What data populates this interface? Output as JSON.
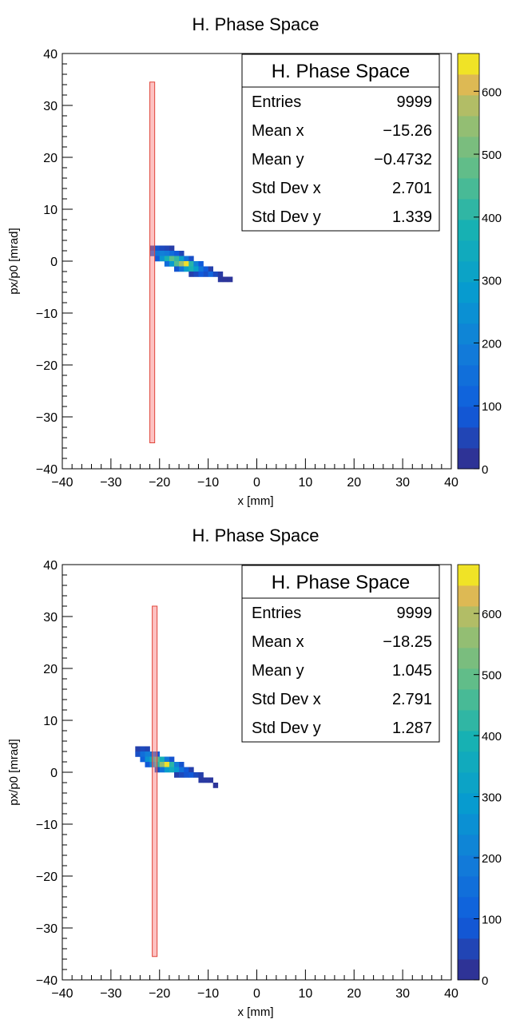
{
  "chart_data": [
    {
      "type": "heatmap",
      "title": "H. Phase Space",
      "xlabel": "x [mm]",
      "ylabel": "px/p0 [mrad]",
      "xlim": [
        -40,
        40
      ],
      "ylim": [
        -40,
        40
      ],
      "x_ticks": [
        "−40",
        "−30",
        "−20",
        "−10",
        "0",
        "10",
        "20",
        "30",
        "40"
      ],
      "y_ticks": [
        "−40",
        "−30",
        "−20",
        "−10",
        "0",
        "10",
        "20",
        "30",
        "40"
      ],
      "z_range": [
        0,
        660
      ],
      "palette_ticks": [
        "0",
        "100",
        "200",
        "300",
        "400",
        "500",
        "600"
      ],
      "aperture": {
        "x_min": -22,
        "x_max": -21,
        "y_min": -35,
        "y_max": 34.5
      },
      "stats": {
        "title": "H. Phase Space",
        "rows": [
          {
            "label": "Entries",
            "value": "9999"
          },
          {
            "label": "Mean x",
            "value": "−15.26"
          },
          {
            "label": "Mean y",
            "value": "−0.4732"
          },
          {
            "label": "Std Dev x",
            "value": "2.701"
          },
          {
            "label": "Std Dev y",
            "value": "1.339"
          }
        ]
      },
      "cells": [
        {
          "x": -22,
          "y": 2,
          "z": 40
        },
        {
          "x": -21,
          "y": 2,
          "z": 80
        },
        {
          "x": -20,
          "y": 2,
          "z": 60
        },
        {
          "x": -19,
          "y": 2,
          "z": 50
        },
        {
          "x": -18,
          "y": 2,
          "z": 35
        },
        {
          "x": -22,
          "y": 1,
          "z": 110
        },
        {
          "x": -21,
          "y": 1,
          "z": 170
        },
        {
          "x": -20,
          "y": 1,
          "z": 200
        },
        {
          "x": -19,
          "y": 1,
          "z": 180
        },
        {
          "x": -18,
          "y": 1,
          "z": 140
        },
        {
          "x": -17,
          "y": 1,
          "z": 90
        },
        {
          "x": -16,
          "y": 1,
          "z": 50
        },
        {
          "x": -21,
          "y": 0,
          "z": 90
        },
        {
          "x": -20,
          "y": 0,
          "z": 260
        },
        {
          "x": -19,
          "y": 0,
          "z": 380
        },
        {
          "x": -18,
          "y": 0,
          "z": 470
        },
        {
          "x": -17,
          "y": 0,
          "z": 420
        },
        {
          "x": -16,
          "y": 0,
          "z": 300
        },
        {
          "x": -15,
          "y": 0,
          "z": 160
        },
        {
          "x": -14,
          "y": 0,
          "z": 70
        },
        {
          "x": -19,
          "y": -1,
          "z": 140
        },
        {
          "x": -18,
          "y": -1,
          "z": 280
        },
        {
          "x": -17,
          "y": -1,
          "z": 460
        },
        {
          "x": -16,
          "y": -1,
          "z": 560
        },
        {
          "x": -15,
          "y": -1,
          "z": 640
        },
        {
          "x": -14,
          "y": -1,
          "z": 400
        },
        {
          "x": -13,
          "y": -1,
          "z": 210
        },
        {
          "x": -12,
          "y": -1,
          "z": 90
        },
        {
          "x": -17,
          "y": -2,
          "z": 80
        },
        {
          "x": -16,
          "y": -2,
          "z": 160
        },
        {
          "x": -15,
          "y": -2,
          "z": 300
        },
        {
          "x": -14,
          "y": -2,
          "z": 380
        },
        {
          "x": -13,
          "y": -2,
          "z": 300
        },
        {
          "x": -12,
          "y": -2,
          "z": 170
        },
        {
          "x": -11,
          "y": -2,
          "z": 90
        },
        {
          "x": -10,
          "y": -2,
          "z": 40
        },
        {
          "x": -14,
          "y": -3,
          "z": 40
        },
        {
          "x": -13,
          "y": -3,
          "z": 60
        },
        {
          "x": -12,
          "y": -3,
          "z": 90
        },
        {
          "x": -11,
          "y": -3,
          "z": 70
        },
        {
          "x": -10,
          "y": -3,
          "z": 120
        },
        {
          "x": -9,
          "y": -3,
          "z": 60
        },
        {
          "x": -8,
          "y": -3,
          "z": 30
        },
        {
          "x": -8,
          "y": -4,
          "z": 25
        },
        {
          "x": -7,
          "y": -4,
          "z": 20
        },
        {
          "x": -6,
          "y": -4,
          "z": 20
        }
      ]
    },
    {
      "type": "heatmap",
      "title": "H. Phase Space",
      "xlabel": "x [mm]",
      "ylabel": "px/p0 [mrad]",
      "xlim": [
        -40,
        40
      ],
      "ylim": [
        -40,
        40
      ],
      "x_ticks": [
        "−40",
        "−30",
        "−20",
        "−10",
        "0",
        "10",
        "20",
        "30",
        "40"
      ],
      "y_ticks": [
        "−40",
        "−30",
        "−20",
        "−10",
        "0",
        "10",
        "20",
        "30",
        "40"
      ],
      "z_range": [
        0,
        680
      ],
      "palette_ticks": [
        "0",
        "100",
        "200",
        "300",
        "400",
        "500",
        "600"
      ],
      "aperture": {
        "x_min": -21.5,
        "x_max": -20.5,
        "y_min": -35.5,
        "y_max": 32
      },
      "stats": {
        "title": "H. Phase Space",
        "rows": [
          {
            "label": "Entries",
            "value": "9999"
          },
          {
            "label": "Mean x",
            "value": "−18.25"
          },
          {
            "label": "Mean y",
            "value": "1.045"
          },
          {
            "label": "Std Dev x",
            "value": "2.791"
          },
          {
            "label": "Std Dev y",
            "value": "1.287"
          }
        ]
      },
      "cells": [
        {
          "x": -25,
          "y": 4,
          "z": 40
        },
        {
          "x": -24,
          "y": 4,
          "z": 60
        },
        {
          "x": -23,
          "y": 4,
          "z": 50
        },
        {
          "x": -25,
          "y": 3,
          "z": 70
        },
        {
          "x": -24,
          "y": 3,
          "z": 150
        },
        {
          "x": -23,
          "y": 3,
          "z": 200
        },
        {
          "x": -22,
          "y": 3,
          "z": 170
        },
        {
          "x": -21,
          "y": 3,
          "z": 90
        },
        {
          "x": -24,
          "y": 2,
          "z": 110
        },
        {
          "x": -23,
          "y": 2,
          "z": 260
        },
        {
          "x": -22,
          "y": 2,
          "z": 380
        },
        {
          "x": -21,
          "y": 2,
          "z": 470
        },
        {
          "x": -20,
          "y": 2,
          "z": 380
        },
        {
          "x": -19,
          "y": 2,
          "z": 180
        },
        {
          "x": -18,
          "y": 2,
          "z": 80
        },
        {
          "x": -23,
          "y": 1,
          "z": 90
        },
        {
          "x": -22,
          "y": 1,
          "z": 230
        },
        {
          "x": -21,
          "y": 1,
          "z": 420
        },
        {
          "x": -20,
          "y": 1,
          "z": 560
        },
        {
          "x": -19,
          "y": 1,
          "z": 660
        },
        {
          "x": -18,
          "y": 1,
          "z": 420
        },
        {
          "x": -17,
          "y": 1,
          "z": 200
        },
        {
          "x": -16,
          "y": 1,
          "z": 80
        },
        {
          "x": -21,
          "y": 0,
          "z": 70
        },
        {
          "x": -20,
          "y": 0,
          "z": 160
        },
        {
          "x": -19,
          "y": 0,
          "z": 300
        },
        {
          "x": -18,
          "y": 0,
          "z": 360
        },
        {
          "x": -17,
          "y": 0,
          "z": 280
        },
        {
          "x": -16,
          "y": 0,
          "z": 160
        },
        {
          "x": -15,
          "y": 0,
          "z": 90
        },
        {
          "x": -14,
          "y": 0,
          "z": 40
        },
        {
          "x": -17,
          "y": -1,
          "z": 40
        },
        {
          "x": -16,
          "y": -1,
          "z": 60
        },
        {
          "x": -15,
          "y": -1,
          "z": 80
        },
        {
          "x": -14,
          "y": -1,
          "z": 90
        },
        {
          "x": -13,
          "y": -1,
          "z": 60
        },
        {
          "x": -12,
          "y": -1,
          "z": 40
        },
        {
          "x": -12,
          "y": -2,
          "z": 30
        },
        {
          "x": -11,
          "y": -2,
          "z": 30
        },
        {
          "x": -10,
          "y": -2,
          "z": 25
        },
        {
          "x": -9,
          "y": -3,
          "z": 20
        }
      ]
    }
  ]
}
